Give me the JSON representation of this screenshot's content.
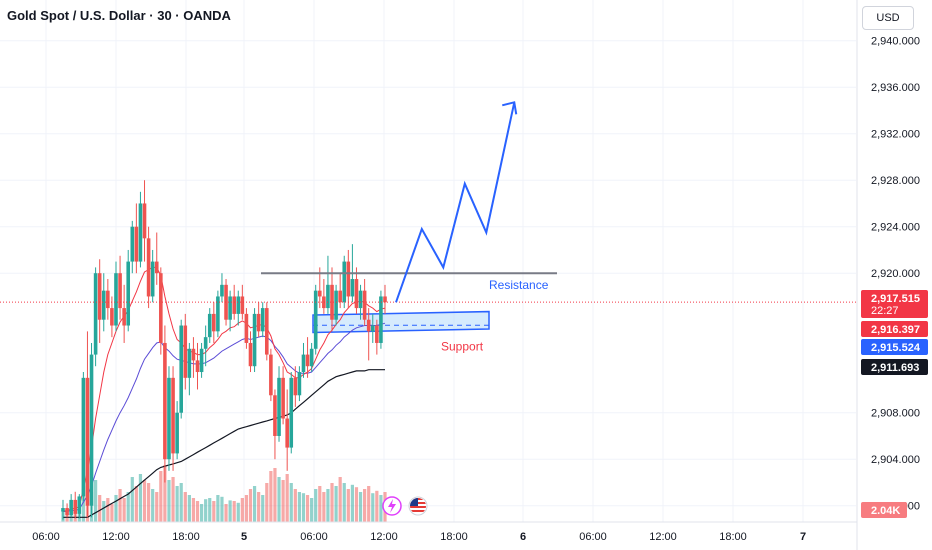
{
  "header": {
    "title": "Gold Spot / U.S. Dollar · 30 · OANDA",
    "currency": "USD"
  },
  "colors": {
    "up": "#26a69a",
    "down": "#ef5350",
    "ema_fast": "#f23645",
    "ema_mid": "#5b4cd6",
    "ema_slow": "#131722",
    "projection": "#2962ff",
    "resistance_line": "#787b86",
    "support_text": "#f23645",
    "resistance_text": "#2962ff"
  },
  "chart_data": {
    "type": "candlestick",
    "symbol": "Gold Spot / U.S. Dollar",
    "interval": "30",
    "x_ticks": [
      "06:00",
      "12:00",
      "18:00",
      "5",
      "06:00",
      "12:00",
      "18:00",
      "6",
      "06:00",
      "12:00",
      "18:00",
      "7"
    ],
    "y_ticks": [
      "2,940.000",
      "2,936.000",
      "2,932.000",
      "2,928.000",
      "2,924.000",
      "2,920.000",
      "2,908.000",
      "2,904.000",
      "2,900.000"
    ],
    "ylim": [
      2898.6,
      2943.5
    ],
    "price_labels": [
      {
        "value": 2917.515,
        "text": "2,917.515",
        "sub": "22:27",
        "color": "#f23645",
        "text_color": "#ffffff"
      },
      {
        "value": 2916.397,
        "text": "2,916.397",
        "color": "#f23645",
        "text_color": "#ffffff"
      },
      {
        "value": 2915.524,
        "text": "2,915.524",
        "color": "#2962ff",
        "text_color": "#ffffff"
      },
      {
        "value": 2911.693,
        "text": "2,911.693",
        "color": "#131722",
        "text_color": "#ffffff"
      }
    ],
    "volume_label": "2.04K",
    "current_price": 2917.515,
    "candles": [
      [
        2899.5,
        2900.5,
        2898.8,
        2899.8
      ],
      [
        2899.8,
        2900.2,
        2899.0,
        2899.2
      ],
      [
        2899.2,
        2901.0,
        2899.0,
        2900.5
      ],
      [
        2900.5,
        2901.2,
        2898.9,
        2899.3
      ],
      [
        2899.3,
        2901.0,
        2898.9,
        2900.8
      ],
      [
        2900.8,
        2911.5,
        2900.4,
        2911.0
      ],
      [
        2911.0,
        2915.0,
        2899.0,
        2900.0
      ],
      [
        2900.0,
        2914.0,
        2899.0,
        2913.0
      ],
      [
        2913.0,
        2920.5,
        2912.0,
        2920.0
      ],
      [
        2920.0,
        2921.2,
        2914.0,
        2916.0
      ],
      [
        2916.0,
        2920.0,
        2915.0,
        2918.5
      ],
      [
        2918.5,
        2919.5,
        2916.0,
        2917.0
      ],
      [
        2917.0,
        2918.0,
        2914.5,
        2915.5
      ],
      [
        2915.5,
        2921.0,
        2915.0,
        2920.0
      ],
      [
        2920.0,
        2921.5,
        2916.0,
        2917.0
      ],
      [
        2917.0,
        2919.0,
        2914.0,
        2915.5
      ],
      [
        2915.5,
        2922.0,
        2915.0,
        2921.0
      ],
      [
        2921.0,
        2924.5,
        2920.0,
        2924.0
      ],
      [
        2924.0,
        2926.0,
        2920.0,
        2921.0
      ],
      [
        2921.0,
        2927.0,
        2920.5,
        2926.0
      ],
      [
        2926.0,
        2928.0,
        2921.0,
        2923.0
      ],
      [
        2923.0,
        2924.0,
        2917.0,
        2918.0
      ],
      [
        2918.0,
        2922.0,
        2917.5,
        2921.0
      ],
      [
        2921.0,
        2923.5,
        2919.0,
        2920.0
      ],
      [
        2920.0,
        2920.5,
        2913.0,
        2914.0
      ],
      [
        2914.0,
        2915.5,
        2902.0,
        2904.0
      ],
      [
        2904.0,
        2912.0,
        2903.0,
        2911.0
      ],
      [
        2911.0,
        2912.0,
        2903.0,
        2904.5
      ],
      [
        2904.5,
        2909.0,
        2904.0,
        2908.0
      ],
      [
        2908.0,
        2916.0,
        2907.5,
        2915.5
      ],
      [
        2915.5,
        2916.5,
        2910.0,
        2911.0
      ],
      [
        2911.0,
        2914.0,
        2909.5,
        2913.5
      ],
      [
        2913.5,
        2914.5,
        2911.0,
        2912.5
      ],
      [
        2912.5,
        2914.0,
        2910.0,
        2911.5
      ],
      [
        2911.5,
        2914.0,
        2911.0,
        2913.5
      ],
      [
        2913.5,
        2915.5,
        2912.0,
        2914.5
      ],
      [
        2914.5,
        2917.0,
        2914.0,
        2916.5
      ],
      [
        2916.5,
        2917.5,
        2914.0,
        2915.0
      ],
      [
        2915.0,
        2918.5,
        2914.5,
        2918.0
      ],
      [
        2918.0,
        2920.0,
        2917.5,
        2919.0
      ],
      [
        2919.0,
        2919.5,
        2915.5,
        2916.0
      ],
      [
        2916.0,
        2918.5,
        2915.0,
        2918.0
      ],
      [
        2918.0,
        2919.0,
        2916.0,
        2916.5
      ],
      [
        2916.5,
        2918.5,
        2915.5,
        2918.0
      ],
      [
        2918.0,
        2919.0,
        2916.0,
        2916.5
      ],
      [
        2916.5,
        2917.0,
        2913.5,
        2914.0
      ],
      [
        2914.0,
        2915.0,
        2911.5,
        2912.0
      ],
      [
        2912.0,
        2917.0,
        2911.5,
        2916.5
      ],
      [
        2916.5,
        2917.5,
        2914.5,
        2915.0
      ],
      [
        2915.0,
        2917.5,
        2914.5,
        2917.0
      ],
      [
        2917.0,
        2917.5,
        2912.5,
        2913.0
      ],
      [
        2913.0,
        2913.5,
        2909.0,
        2909.5
      ],
      [
        2909.5,
        2910.0,
        2904.0,
        2906.0
      ],
      [
        2906.0,
        2912.0,
        2905.5,
        2911.0
      ],
      [
        2911.0,
        2912.0,
        2907.0,
        2907.5
      ],
      [
        2907.5,
        2910.0,
        2903.0,
        2905.0
      ],
      [
        2905.0,
        2911.5,
        2904.5,
        2911.0
      ],
      [
        2911.0,
        2912.0,
        2908.5,
        2909.5
      ],
      [
        2909.5,
        2912.0,
        2909.0,
        2911.5
      ],
      [
        2911.5,
        2914.0,
        2911.0,
        2913.0
      ],
      [
        2913.0,
        2914.5,
        2911.0,
        2912.0
      ],
      [
        2912.0,
        2914.0,
        2911.5,
        2913.5
      ],
      [
        2913.5,
        2919.0,
        2913.0,
        2918.5
      ],
      [
        2918.5,
        2920.5,
        2917.0,
        2918.0
      ],
      [
        2918.0,
        2919.5,
        2916.5,
        2917.0
      ],
      [
        2917.0,
        2921.5,
        2916.5,
        2919.0
      ],
      [
        2919.0,
        2920.5,
        2915.0,
        2916.0
      ],
      [
        2916.0,
        2919.0,
        2915.5,
        2918.5
      ],
      [
        2918.5,
        2920.0,
        2917.0,
        2917.5
      ],
      [
        2917.5,
        2921.5,
        2917.0,
        2921.0
      ],
      [
        2921.0,
        2922.0,
        2917.0,
        2918.0
      ],
      [
        2918.0,
        2922.5,
        2917.5,
        2919.5
      ],
      [
        2919.5,
        2920.5,
        2916.5,
        2917.0
      ],
      [
        2917.0,
        2919.0,
        2916.0,
        2918.5
      ],
      [
        2918.5,
        2919.5,
        2915.5,
        2916.0
      ],
      [
        2916.0,
        2917.0,
        2912.5,
        2915.0
      ],
      [
        2915.0,
        2916.5,
        2914.0,
        2915.5
      ],
      [
        2915.5,
        2916.0,
        2913.0,
        2914.0
      ],
      [
        2914.0,
        2918.5,
        2913.5,
        2918.0
      ],
      [
        2918.0,
        2919.0,
        2916.5,
        2917.5
      ]
    ],
    "volumes": [
      0.2,
      0.15,
      0.25,
      0.18,
      0.22,
      0.55,
      0.6,
      0.5,
      0.7,
      0.45,
      0.35,
      0.4,
      0.3,
      0.45,
      0.55,
      0.4,
      0.5,
      0.75,
      0.6,
      0.8,
      0.7,
      0.65,
      0.55,
      0.5,
      0.85,
      0.95,
      0.7,
      0.75,
      0.6,
      0.65,
      0.5,
      0.45,
      0.4,
      0.35,
      0.3,
      0.38,
      0.4,
      0.35,
      0.45,
      0.42,
      0.3,
      0.36,
      0.35,
      0.32,
      0.4,
      0.45,
      0.55,
      0.6,
      0.5,
      0.45,
      0.65,
      0.85,
      0.9,
      0.75,
      0.7,
      0.8,
      0.65,
      0.55,
      0.5,
      0.48,
      0.45,
      0.4,
      0.55,
      0.6,
      0.5,
      0.55,
      0.65,
      0.6,
      0.75,
      0.65,
      0.55,
      0.62,
      0.58,
      0.5,
      0.55,
      0.6,
      0.48,
      0.52,
      0.45,
      0.5
    ],
    "ema_fast": [
      2899.5,
      2899.6,
      2899.7,
      2899.8,
      2899.9,
      2901.5,
      2903.0,
      2905.0,
      2907.5,
      2909.5,
      2911.5,
      2913.0,
      2914.0,
      2915.0,
      2915.8,
      2916.3,
      2916.8,
      2917.6,
      2918.4,
      2919.3,
      2920.1,
      2920.3,
      2920.5,
      2920.5,
      2919.8,
      2918.0,
      2916.5,
      2915.2,
      2914.3,
      2914.0,
      2913.5,
      2913.3,
      2913.2,
      2913.0,
      2913.0,
      2913.2,
      2913.6,
      2913.9,
      2914.3,
      2914.8,
      2915.0,
      2915.3,
      2915.4,
      2915.7,
      2915.9,
      2915.7,
      2915.3,
      2915.4,
      2915.5,
      2915.6,
      2915.3,
      2914.6,
      2913.5,
      2913.0,
      2912.3,
      2911.5,
      2911.3,
      2911.0,
      2911.0,
      2911.3,
      2911.5,
      2911.8,
      2912.6,
      2913.4,
      2914.0,
      2914.7,
      2915.1,
      2915.6,
      2916.0,
      2916.6,
      2917.0,
      2917.4,
      2917.5,
      2917.6,
      2917.5,
      2917.2,
      2917.0,
      2916.7,
      2916.9,
      2917.0
    ],
    "ema_mid": [
      2899.5,
      2899.5,
      2899.6,
      2899.6,
      2899.7,
      2900.3,
      2900.9,
      2901.7,
      2902.8,
      2903.8,
      2904.8,
      2905.7,
      2906.5,
      2907.3,
      2908.0,
      2908.6,
      2909.3,
      2910.1,
      2910.9,
      2911.8,
      2912.6,
      2913.1,
      2913.6,
      2914.0,
      2914.1,
      2913.6,
      2913.3,
      2912.9,
      2912.6,
      2912.5,
      2912.4,
      2912.3,
      2912.2,
      2912.2,
      2912.2,
      2912.3,
      2912.5,
      2912.7,
      2913.0,
      2913.3,
      2913.5,
      2913.7,
      2913.9,
      2914.1,
      2914.3,
      2914.4,
      2914.3,
      2914.4,
      2914.5,
      2914.6,
      2914.5,
      2914.2,
      2913.7,
      2913.3,
      2912.8,
      2912.2,
      2911.9,
      2911.6,
      2911.4,
      2911.4,
      2911.4,
      2911.5,
      2911.9,
      2912.3,
      2912.7,
      2913.1,
      2913.4,
      2913.8,
      2914.1,
      2914.5,
      2914.8,
      2915.1,
      2915.3,
      2915.4,
      2915.5,
      2915.5,
      2915.5,
      2915.5,
      2915.6,
      2915.7
    ],
    "ema_slow": [
      2899.0,
      2899.0,
      2899.0,
      2899.0,
      2899.0,
      2899.0,
      2899.0,
      2899.2,
      2899.4,
      2899.6,
      2899.8,
      2900.0,
      2900.2,
      2900.4,
      2900.6,
      2900.8,
      2901.0,
      2901.3,
      2901.6,
      2901.9,
      2902.2,
      2902.5,
      2902.8,
      2903.1,
      2903.3,
      2903.4,
      2903.5,
      2903.6,
      2903.7,
      2903.8,
      2904.0,
      2904.2,
      2904.4,
      2904.6,
      2904.8,
      2905.0,
      2905.2,
      2905.4,
      2905.6,
      2905.8,
      2906.0,
      2906.2,
      2906.4,
      2906.6,
      2906.7,
      2906.8,
      2906.9,
      2907.0,
      2907.1,
      2907.2,
      2907.3,
      2907.4,
      2907.5,
      2907.6,
      2907.7,
      2907.8,
      2908.0,
      2908.3,
      2908.6,
      2908.9,
      2909.2,
      2909.5,
      2909.8,
      2910.1,
      2910.4,
      2910.7,
      2910.9,
      2911.1,
      2911.2,
      2911.3,
      2911.4,
      2911.5,
      2911.6,
      2911.6,
      2911.6,
      2911.7,
      2911.7,
      2911.7,
      2911.7,
      2911.7
    ]
  },
  "annotations": {
    "resistance_label": "Resistance",
    "support_label": "Support",
    "resistance_price": 2920.0,
    "support_top": 2916.4,
    "support_bottom": 2914.9,
    "support_mid": 2915.524,
    "projection_path": [
      [
        2917.5,
        0
      ],
      [
        2923.8,
        1.2
      ],
      [
        2920.5,
        2.2
      ],
      [
        2927.7,
        3.2
      ],
      [
        2923.5,
        4.2
      ],
      [
        2934.7,
        5.5
      ]
    ]
  }
}
